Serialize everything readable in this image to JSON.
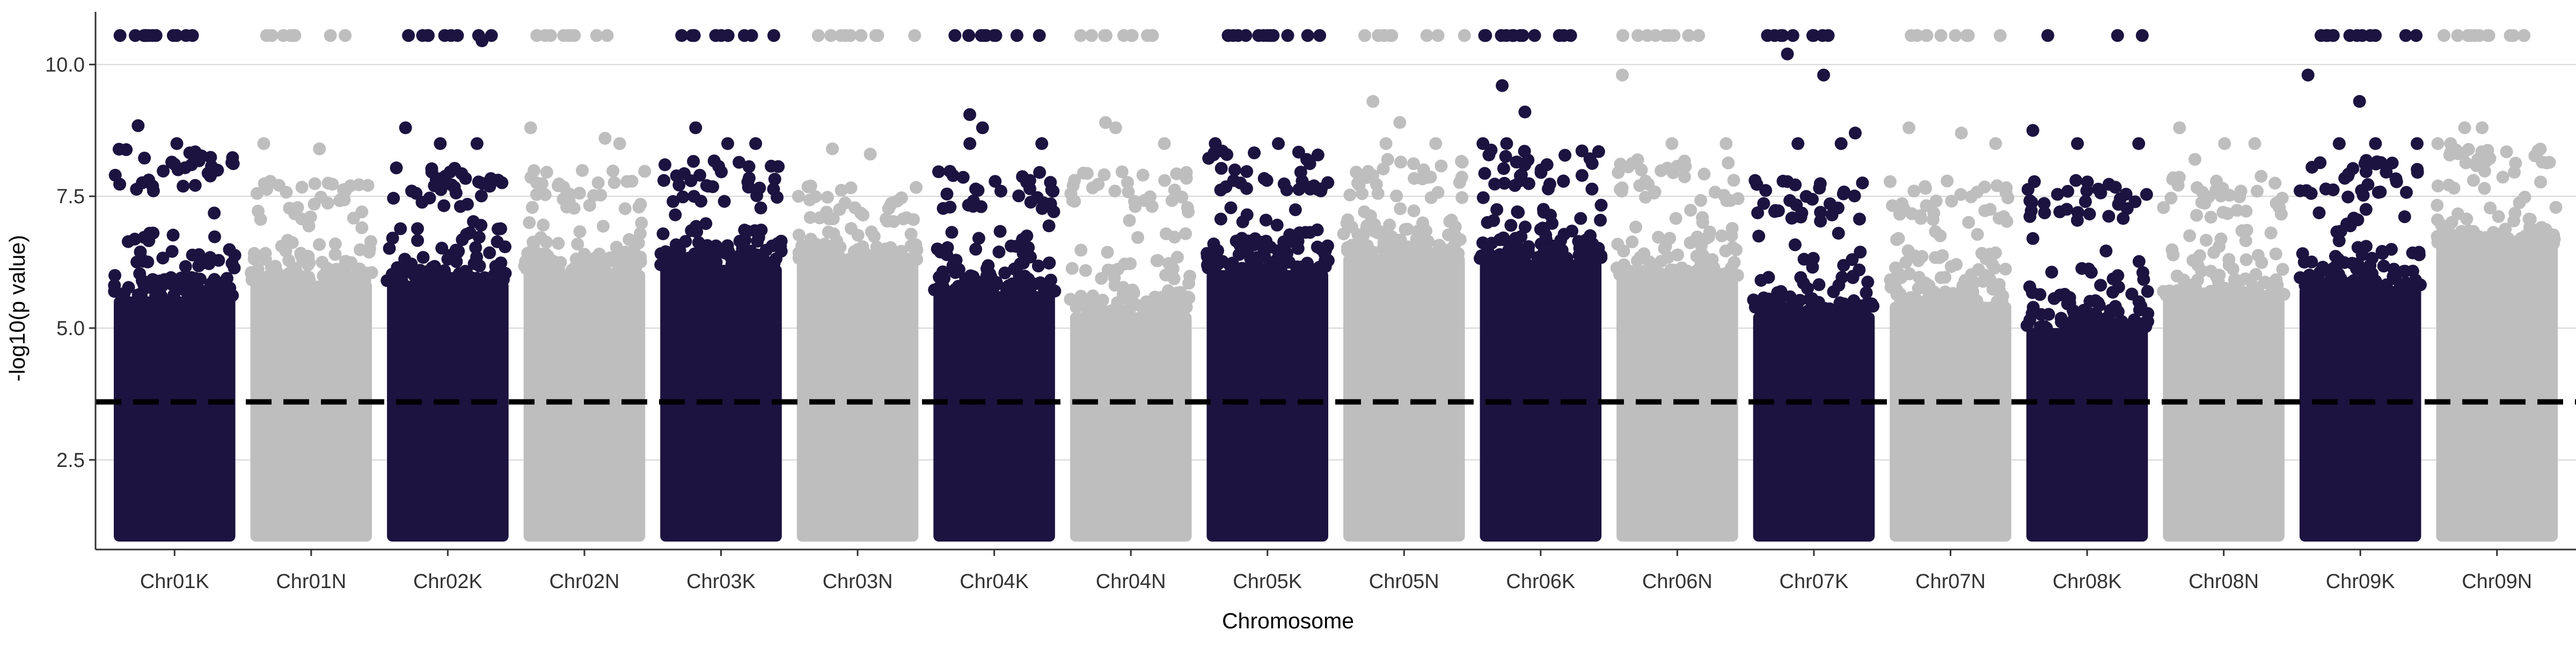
{
  "chart_data": {
    "type": "scatter",
    "title": "",
    "xlabel": "Chromosome",
    "ylabel": "-log10(p value)",
    "ylim": [
      0.8,
      11.0
    ],
    "y_ticks": [
      "2.5",
      "5.0",
      "7.5",
      "10.0"
    ],
    "y_tick_values": [
      2.5,
      5.0,
      7.5,
      10.0
    ],
    "grid": "horizontal major lines",
    "legend": "none",
    "threshold_line": {
      "y": 3.6,
      "style": "dashed",
      "color": "#000000"
    },
    "cap_value": 10.55,
    "colors": {
      "odd": "#1c1340",
      "even": "#bebebe",
      "grid": "#d6d6d6",
      "axis": "#333333"
    },
    "categories": [
      "Chr01K",
      "Chr01N",
      "Chr02K",
      "Chr02N",
      "Chr03K",
      "Chr03N",
      "Chr04K",
      "Chr04N",
      "Chr05K",
      "Chr05N",
      "Chr06K",
      "Chr06N",
      "Chr07K",
      "Chr07N",
      "Chr08K",
      "Chr08N",
      "Chr09K",
      "Chr09N"
    ],
    "series": [
      {
        "chromosome": "Chr01K",
        "color": "dark",
        "dense_top": 5.6,
        "scatter_top": 7.6,
        "extremes": [
          8.84,
          8.5,
          7.9,
          10.55,
          10.55,
          10.55,
          10.55
        ]
      },
      {
        "chromosome": "Chr01N",
        "color": "light",
        "dense_top": 5.9,
        "scatter_top": 7.0,
        "extremes": [
          8.5,
          8.4,
          7.7,
          10.55,
          10.55,
          10.55
        ]
      },
      {
        "chromosome": "Chr02K",
        "color": "dark",
        "dense_top": 5.9,
        "scatter_top": 7.3,
        "extremes": [
          8.8,
          8.5,
          8.5,
          7.7,
          10.55,
          10.55,
          10.55,
          10.45
        ]
      },
      {
        "chromosome": "Chr02N",
        "color": "light",
        "dense_top": 6.1,
        "scatter_top": 7.2,
        "extremes": [
          8.8,
          8.6,
          8.5,
          7.4,
          10.55,
          10.55,
          10.55
        ]
      },
      {
        "chromosome": "Chr03K",
        "color": "dark",
        "dense_top": 6.2,
        "scatter_top": 7.4,
        "extremes": [
          8.8,
          8.5,
          8.5,
          7.9,
          10.55,
          10.55,
          10.55,
          10.55
        ]
      },
      {
        "chromosome": "Chr03N",
        "color": "light",
        "dense_top": 6.3,
        "scatter_top": 7.0,
        "extremes": [
          8.4,
          8.3,
          10.55,
          10.55,
          10.55
        ]
      },
      {
        "chromosome": "Chr04K",
        "color": "dark",
        "dense_top": 5.7,
        "scatter_top": 7.2,
        "extremes": [
          9.05,
          8.8,
          8.5,
          8.5,
          10.55,
          10.55,
          10.55
        ]
      },
      {
        "chromosome": "Chr04N",
        "color": "light",
        "dense_top": 5.3,
        "scatter_top": 7.2,
        "extremes": [
          8.9,
          8.8,
          8.5,
          7.6,
          10.55,
          10.55,
          10.55
        ]
      },
      {
        "chromosome": "Chr05K",
        "color": "dark",
        "dense_top": 6.1,
        "scatter_top": 7.6,
        "extremes": [
          8.5,
          8.5,
          8.2,
          8.0,
          10.55,
          10.55,
          10.55,
          10.55
        ]
      },
      {
        "chromosome": "Chr05N",
        "color": "light",
        "dense_top": 6.4,
        "scatter_top": 7.4,
        "extremes": [
          9.3,
          8.9,
          8.5,
          8.5,
          10.55,
          10.55,
          10.55
        ]
      },
      {
        "chromosome": "Chr06K",
        "color": "dark",
        "dense_top": 6.3,
        "scatter_top": 7.6,
        "extremes": [
          9.6,
          9.1,
          8.5,
          8.5,
          8.0,
          10.55,
          10.55,
          10.55,
          10.55
        ]
      },
      {
        "chromosome": "Chr06N",
        "color": "light",
        "dense_top": 6.0,
        "scatter_top": 7.4,
        "extremes": [
          9.8,
          8.5,
          8.5,
          8.0,
          10.55,
          10.55,
          10.55
        ]
      },
      {
        "chromosome": "Chr07K",
        "color": "dark",
        "dense_top": 5.3,
        "scatter_top": 7.0,
        "extremes": [
          10.2,
          9.8,
          8.7,
          8.5,
          8.5,
          7.8,
          10.55,
          10.55,
          10.55
        ]
      },
      {
        "chromosome": "Chr07N",
        "color": "light",
        "dense_top": 5.5,
        "scatter_top": 7.0,
        "extremes": [
          8.8,
          8.7,
          8.5,
          7.6,
          10.55,
          10.55,
          10.55
        ]
      },
      {
        "chromosome": "Chr08K",
        "color": "dark",
        "dense_top": 5.0,
        "scatter_top": 7.0,
        "extremes": [
          8.75,
          8.5,
          8.5,
          7.8,
          7.4,
          10.55
        ]
      },
      {
        "chromosome": "Chr08N",
        "color": "light",
        "dense_top": 5.6,
        "scatter_top": 7.1,
        "extremes": [
          8.8,
          8.5,
          8.5,
          8.2,
          7.6
        ]
      },
      {
        "chromosome": "Chr09K",
        "color": "dark",
        "dense_top": 5.8,
        "scatter_top": 7.4,
        "extremes": [
          9.8,
          9.3,
          8.5,
          8.5,
          8.5,
          10.55,
          10.55,
          10.55,
          10.55
        ]
      },
      {
        "chromosome": "Chr09N",
        "color": "light",
        "dense_top": 6.6,
        "scatter_top": 7.6,
        "extremes": [
          8.8,
          8.8,
          8.5,
          8.5,
          10.55,
          10.55,
          10.55,
          10.55
        ]
      }
    ]
  }
}
